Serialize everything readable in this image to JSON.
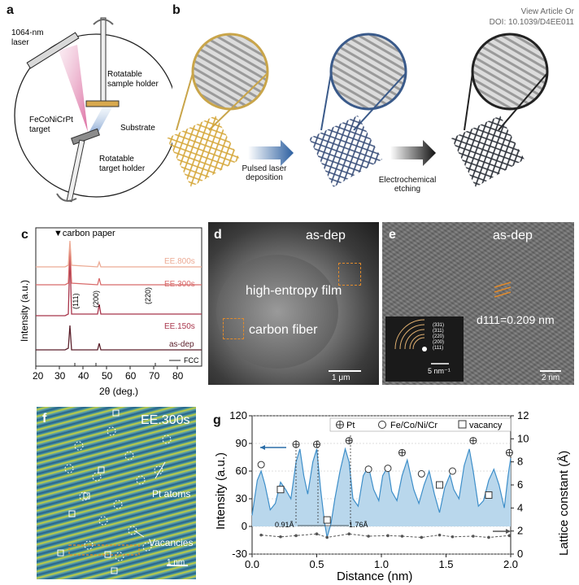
{
  "header": {
    "view_article": "View Article Or",
    "doi": "DOI: 10.1039/D4EE011"
  },
  "panel_labels": [
    "a",
    "b",
    "c",
    "d",
    "e",
    "f",
    "g"
  ],
  "panel_a": {
    "laser": "1064-nm laser",
    "sample_holder": "Rotatable sample holder",
    "target": "FeCoNiCrPt target",
    "substrate": "Substrate",
    "target_holder": "Rotatable target holder"
  },
  "panel_b": {
    "step1": "Pulsed laser deposition",
    "step2": "Electrochemical etching"
  },
  "panel_c": {
    "legend_marker": "▼carbon paper",
    "series_labels": [
      "EE.800s",
      "EE.300s",
      "EE.150s",
      "as-dep"
    ],
    "fcc_label": "FCC",
    "peak_labels": [
      "(111)",
      "(200)",
      "(220)"
    ],
    "xlabel": "2θ (deg.)",
    "ylabel": "Intensity (a.u.)",
    "xticks": [
      "20",
      "30",
      "40",
      "50",
      "60",
      "70",
      "80"
    ]
  },
  "panel_d": {
    "title": "as-dep",
    "film": "high-entropy film",
    "fiber": "carbon fiber",
    "scale": "1 μm"
  },
  "panel_e": {
    "title": "as-dep",
    "dspacing": "d111=0.209 nm",
    "saed_rings": [
      "(331)",
      "(311)",
      "(220)",
      "(200)",
      "(111)"
    ],
    "inset_scale": "5 nm⁻¹",
    "scale": "2 nm"
  },
  "panel_f": {
    "title": "EE.300s",
    "pt_atoms": "Pt atoms",
    "vacancies": "Vacancies",
    "scale": "1 nm"
  },
  "chart_data": {
    "type": "line",
    "title": "",
    "xlabel": "Distance (nm)",
    "ylabel": "Intensity (a.u.)",
    "y2label": "Lattice constant (Å)",
    "xlim": [
      0,
      2.0
    ],
    "ylim": [
      -30,
      120
    ],
    "y2lim": [
      0,
      12
    ],
    "xticks": [
      "0.0",
      "0.5",
      "1.0",
      "1.5",
      "2.0"
    ],
    "yticks": [
      "-30",
      "0",
      "30",
      "60",
      "90",
      "120"
    ],
    "y2ticks": [
      "0",
      "2",
      "4",
      "6",
      "8",
      "10",
      "12"
    ],
    "legend": [
      "Pt",
      "Fe/Co/Ni/Cr",
      "vacancy"
    ],
    "annotations": [
      "0.91Å",
      "1.76Å"
    ],
    "intensity_x": [
      0.0,
      0.04,
      0.07,
      0.1,
      0.14,
      0.18,
      0.22,
      0.26,
      0.3,
      0.34,
      0.37,
      0.4,
      0.43,
      0.47,
      0.5,
      0.53,
      0.56,
      0.58,
      0.61,
      0.64,
      0.68,
      0.72,
      0.75,
      0.78,
      0.82,
      0.86,
      0.9,
      0.94,
      0.98,
      1.01,
      1.05,
      1.08,
      1.12,
      1.16,
      1.2,
      1.25,
      1.29,
      1.33,
      1.37,
      1.41,
      1.45,
      1.49,
      1.53,
      1.56,
      1.6,
      1.64,
      1.68,
      1.71,
      1.75,
      1.79,
      1.83,
      1.87,
      1.91,
      1.95,
      1.98,
      2.0
    ],
    "intensity_y": [
      12,
      50,
      60,
      45,
      18,
      25,
      48,
      40,
      30,
      70,
      84,
      55,
      35,
      70,
      84,
      40,
      5,
      -12,
      3,
      30,
      60,
      84,
      70,
      30,
      22,
      55,
      65,
      40,
      28,
      55,
      65,
      38,
      28,
      55,
      72,
      40,
      25,
      45,
      60,
      35,
      15,
      42,
      56,
      40,
      30,
      66,
      84,
      60,
      22,
      28,
      50,
      62,
      45,
      20,
      55,
      74
    ],
    "pt_markers": {
      "x": [
        0.34,
        0.5,
        0.75,
        1.16,
        1.71,
        1.99
      ],
      "y": [
        89,
        89,
        93,
        80,
        93,
        80
      ]
    },
    "fcnc_markers": {
      "x": [
        0.07,
        0.9,
        1.05,
        1.31,
        1.55
      ],
      "y": [
        67,
        62,
        63,
        57,
        60
      ]
    },
    "vacancy_markers": {
      "x": [
        0.22,
        0.58,
        1.45,
        1.83
      ],
      "y": [
        40,
        7,
        45,
        34
      ]
    },
    "lattice_x": [
      0.07,
      0.22,
      0.34,
      0.5,
      0.58,
      0.75,
      0.9,
      1.05,
      1.16,
      1.31,
      1.45,
      1.55,
      1.71,
      1.83,
      1.99
    ],
    "lattice_y": [
      1.65,
      1.5,
      1.6,
      1.75,
      1.45,
      1.75,
      1.55,
      1.6,
      1.55,
      1.45,
      1.65,
      1.5,
      1.55,
      1.45,
      1.6
    ]
  }
}
